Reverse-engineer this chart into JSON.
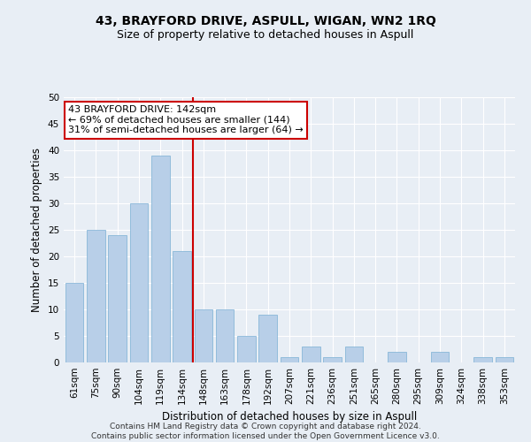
{
  "title": "43, BRAYFORD DRIVE, ASPULL, WIGAN, WN2 1RQ",
  "subtitle": "Size of property relative to detached houses in Aspull",
  "xlabel": "Distribution of detached houses by size in Aspull",
  "ylabel": "Number of detached properties",
  "categories": [
    "61sqm",
    "75sqm",
    "90sqm",
    "104sqm",
    "119sqm",
    "134sqm",
    "148sqm",
    "163sqm",
    "178sqm",
    "192sqm",
    "207sqm",
    "221sqm",
    "236sqm",
    "251sqm",
    "265sqm",
    "280sqm",
    "295sqm",
    "309sqm",
    "324sqm",
    "338sqm",
    "353sqm"
  ],
  "values": [
    15,
    25,
    24,
    30,
    39,
    21,
    10,
    10,
    5,
    9,
    1,
    3,
    1,
    3,
    0,
    2,
    0,
    2,
    0,
    1,
    1
  ],
  "bar_color": "#b8cfe8",
  "bar_edgecolor": "#7aafd4",
  "property_line_label": "43 BRAYFORD DRIVE: 142sqm",
  "annotation_line1": "← 69% of detached houses are smaller (144)",
  "annotation_line2": "31% of semi-detached houses are larger (64) →",
  "annotation_box_color": "#ffffff",
  "annotation_box_edgecolor": "#cc0000",
  "ylim": [
    0,
    50
  ],
  "yticks": [
    0,
    5,
    10,
    15,
    20,
    25,
    30,
    35,
    40,
    45,
    50
  ],
  "background_color": "#e8eef5",
  "plot_bg_color": "#e8eef5",
  "grid_color": "#ffffff",
  "footer_line1": "Contains HM Land Registry data © Crown copyright and database right 2024.",
  "footer_line2": "Contains public sector information licensed under the Open Government Licence v3.0.",
  "title_fontsize": 10,
  "subtitle_fontsize": 9,
  "axis_label_fontsize": 8.5,
  "tick_fontsize": 7.5,
  "footer_fontsize": 6.5,
  "annotation_fontsize": 8
}
